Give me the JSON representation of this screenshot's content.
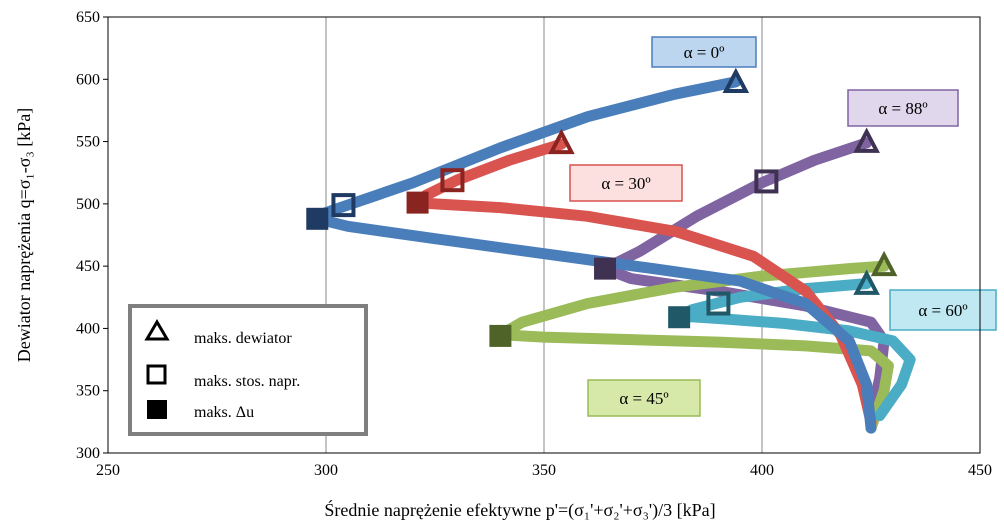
{
  "chart_data": {
    "type": "line",
    "xlabel": "Średnie naprężenie efektywne p'=(σ₁'+σ₂'+σ₃')/3 [kPa]",
    "ylabel": "Dewiator naprężenia q=σ₁-σ₃ [kPa]",
    "xlim": [
      250,
      450
    ],
    "ylim": [
      300,
      650
    ],
    "x_ticks": [
      "250",
      "300",
      "350",
      "400",
      "450"
    ],
    "y_ticks": [
      "300",
      "350",
      "400",
      "450",
      "500",
      "550",
      "600",
      "650"
    ],
    "grid": "vertical",
    "series": [
      {
        "name": "α = 0º",
        "color": "#4a7ebb",
        "marker_color": "#1f3a63",
        "label_fill": "#bcd6ef",
        "label_border": "#4a7ebb",
        "x": [
          425,
          424,
          420,
          410,
          395,
          375,
          350,
          325,
          305,
          298,
          300,
          305,
          320,
          340,
          360,
          380,
          394
        ],
        "y": [
          320,
          355,
          390,
          420,
          438,
          448,
          460,
          472,
          482,
          488,
          493,
          499,
          517,
          545,
          570,
          588,
          598
        ],
        "max_deviator": [
          394,
          597
        ],
        "max_stress_ratio": [
          304,
          499
        ],
        "max_du": [
          298,
          488
        ]
      },
      {
        "name": "α = 30º",
        "color": "#d9534f",
        "marker_color": "#8a2420",
        "label_fill": "#fce0e0",
        "label_border": "#d9534f",
        "x": [
          425,
          423,
          418,
          410,
          398,
          380,
          360,
          340,
          325,
          321,
          323,
          330,
          342,
          354
        ],
        "y": [
          325,
          355,
          395,
          430,
          458,
          478,
          490,
          497,
          500,
          501,
          507,
          519,
          535,
          548
        ],
        "max_deviator": [
          354,
          548
        ],
        "max_stress_ratio": [
          329,
          519
        ],
        "max_du": [
          321,
          501
        ]
      },
      {
        "name": "α = 45º",
        "color": "#9bbb59",
        "marker_color": "#4f6228",
        "label_fill": "#d7e9a8",
        "label_border": "#9bbb59",
        "x": [
          425,
          428,
          429,
          425,
          410,
          390,
          370,
          350,
          340,
          345,
          360,
          380,
          400,
          420,
          428
        ],
        "y": [
          320,
          350,
          370,
          382,
          386,
          389,
          391,
          393,
          395,
          405,
          420,
          433,
          442,
          448,
          450
        ],
        "max_deviator": [
          428,
          450
        ],
        "max_stress_ratio": null,
        "max_du": [
          340,
          394
        ]
      },
      {
        "name": "α = 60º",
        "color": "#4bacc6",
        "marker_color": "#205867",
        "label_fill": "#bfe8f2",
        "label_border": "#4bacc6",
        "x": [
          427,
          432,
          434,
          430,
          420,
          405,
          390,
          381,
          384,
          395,
          410,
          424
        ],
        "y": [
          330,
          355,
          375,
          390,
          398,
          404,
          408,
          410,
          415,
          425,
          432,
          436
        ],
        "max_deviator": [
          424,
          435
        ],
        "max_stress_ratio": [
          390,
          420
        ],
        "max_du": [
          381,
          409
        ]
      },
      {
        "name": "α = 88º",
        "color": "#8064a2",
        "marker_color": "#3f3151",
        "label_fill": "#e1d7ec",
        "label_border": "#8064a2",
        "x": [
          425,
          427,
          428,
          425,
          410,
          390,
          370,
          364,
          372,
          385,
          400,
          412,
          424
        ],
        "y": [
          330,
          360,
          390,
          405,
          418,
          430,
          440,
          448,
          462,
          490,
          517,
          535,
          549
        ],
        "max_deviator": [
          424,
          549
        ],
        "max_stress_ratio": [
          401,
          518
        ],
        "max_du": [
          364,
          448
        ]
      }
    ],
    "legend": {
      "placement": "bottom-left",
      "items": [
        "maks. dewiator",
        "maks. stos. napr.",
        "maks. Δu"
      ]
    }
  }
}
